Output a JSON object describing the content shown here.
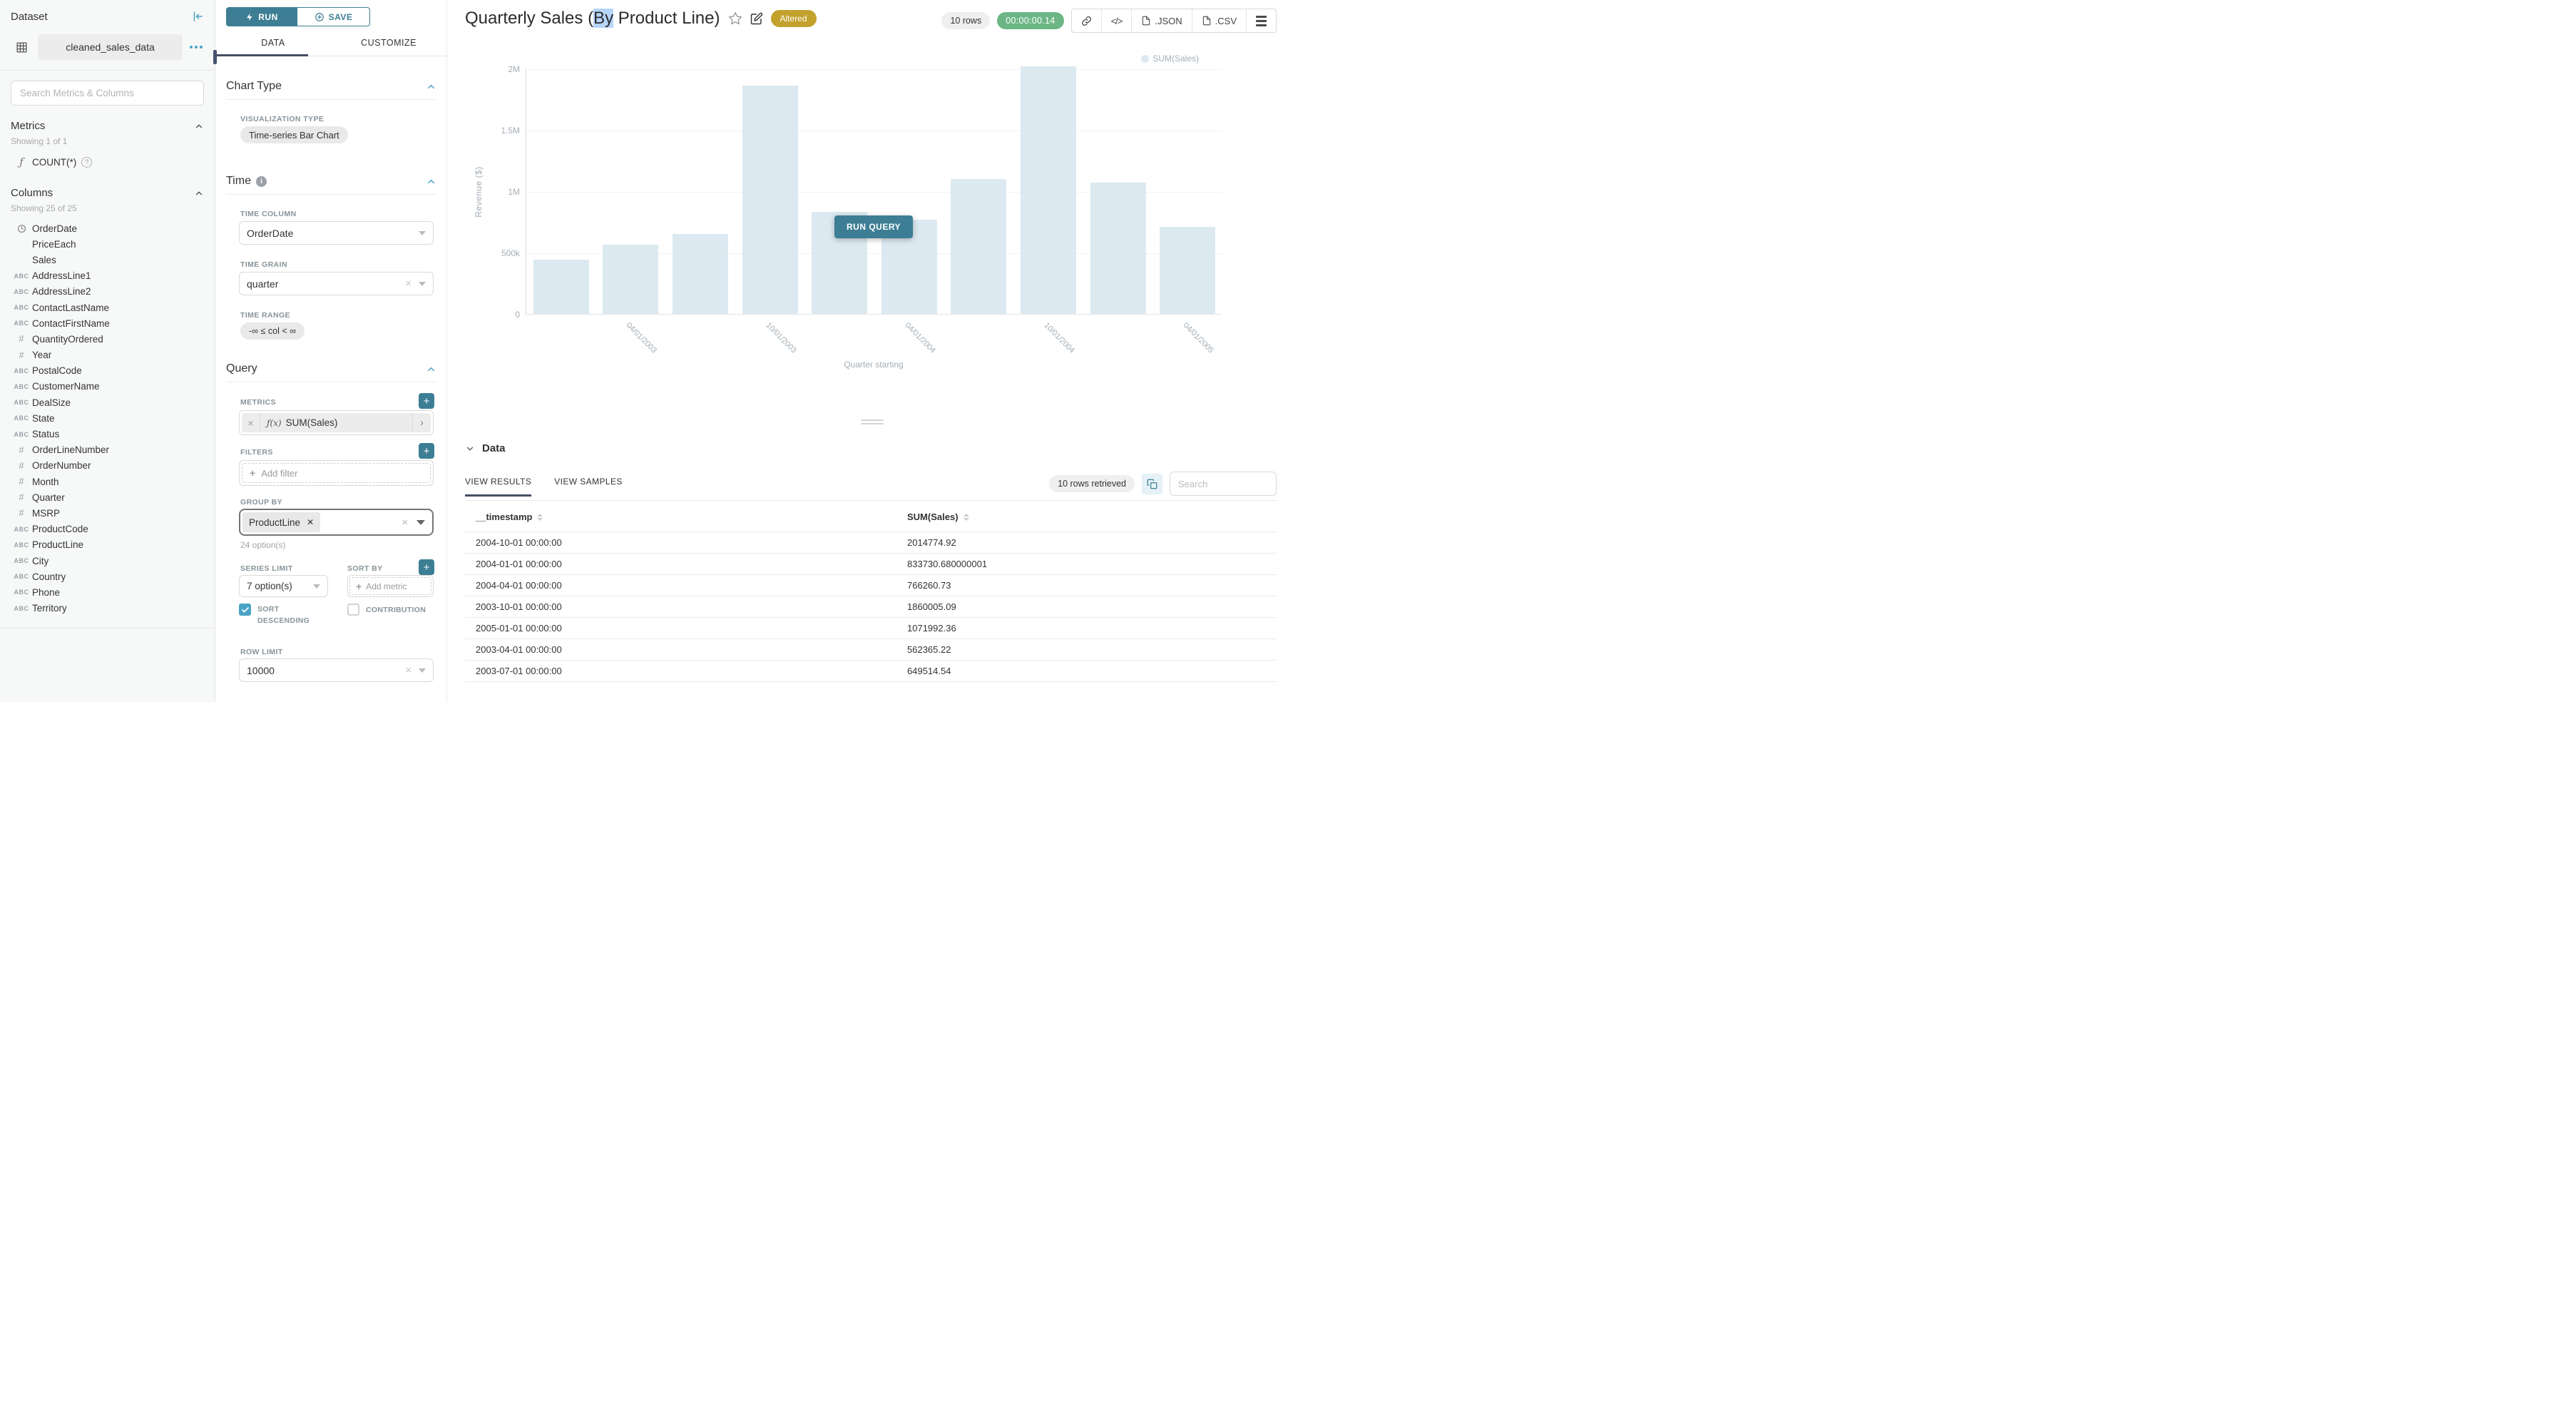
{
  "colors": {
    "accent_teal": "#3d7e94",
    "accent_teal_light": "#4aa3c4",
    "tab_underline_navy": "#474f63",
    "altered_badge_gold": "#c3a12d",
    "timer_green": "#6cb685",
    "bar_fill": "#dce9f1",
    "title_selection": "#b5d5fa"
  },
  "sidebar": {
    "panel_title": "Dataset",
    "dataset_name": "cleaned_sales_data",
    "search_placeholder": "Search Metrics & Columns",
    "metrics": {
      "header": "Metrics",
      "showing": "Showing 1 of 1",
      "items": [
        {
          "icon": "function",
          "label": "COUNT(*)"
        }
      ]
    },
    "columns": {
      "header": "Columns",
      "showing": "Showing 25 of 25",
      "items": [
        {
          "type": "time",
          "label": "OrderDate"
        },
        {
          "type": "none",
          "label": "PriceEach"
        },
        {
          "type": "none",
          "label": "Sales"
        },
        {
          "type": "text",
          "label": "AddressLine1"
        },
        {
          "type": "text",
          "label": "AddressLine2"
        },
        {
          "type": "text",
          "label": "ContactLastName"
        },
        {
          "type": "text",
          "label": "ContactFirstName"
        },
        {
          "type": "num",
          "label": "QuantityOrdered"
        },
        {
          "type": "num",
          "label": "Year"
        },
        {
          "type": "text",
          "label": "PostalCode"
        },
        {
          "type": "text",
          "label": "CustomerName"
        },
        {
          "type": "text",
          "label": "DealSize"
        },
        {
          "type": "text",
          "label": "State"
        },
        {
          "type": "text",
          "label": "Status"
        },
        {
          "type": "num",
          "label": "OrderLineNumber"
        },
        {
          "type": "num",
          "label": "OrderNumber"
        },
        {
          "type": "num",
          "label": "Month"
        },
        {
          "type": "num",
          "label": "Quarter"
        },
        {
          "type": "num",
          "label": "MSRP"
        },
        {
          "type": "text",
          "label": "ProductCode"
        },
        {
          "type": "text",
          "label": "ProductLine"
        },
        {
          "type": "text",
          "label": "City"
        },
        {
          "type": "text",
          "label": "Country"
        },
        {
          "type": "text",
          "label": "Phone"
        },
        {
          "type": "text",
          "label": "Territory"
        }
      ]
    }
  },
  "panel": {
    "run_label": "RUN",
    "save_label": "SAVE",
    "tabs": {
      "data": "DATA",
      "customize": "CUSTOMIZE"
    },
    "chart_type": {
      "header": "Chart Type",
      "viz_label": "VISUALIZATION TYPE",
      "viz_value": "Time-series Bar Chart"
    },
    "time": {
      "header": "Time",
      "column_label": "TIME COLUMN",
      "column_value": "OrderDate",
      "grain_label": "TIME GRAIN",
      "grain_value": "quarter",
      "range_label": "TIME RANGE",
      "range_value": "-∞ ≤ col < ∞"
    },
    "query": {
      "header": "Query",
      "metrics_label": "METRICS",
      "metric_fx": "ƒ(x)",
      "metric_value": "SUM(Sales)",
      "filters_label": "FILTERS",
      "add_filter_label": "Add filter",
      "group_by_label": "GROUP BY",
      "group_by_chip": "ProductLine",
      "group_by_hint": "24 option(s)",
      "series_limit_label": "SERIES LIMIT",
      "series_limit_value": "7 option(s)",
      "sort_by_label": "SORT BY",
      "add_metric_label": "Add metric",
      "sort_descending_label": "SORT DESCENDING",
      "contribution_label": "CONTRIBUTION",
      "row_limit_label": "ROW LIMIT",
      "row_limit_value": "10000"
    }
  },
  "main_header": {
    "title_prefix": "Quarterly Sales (",
    "title_selected": "By",
    "title_suffix": " Product Line)",
    "altered_badge": "Altered",
    "rows_badge": "10 rows",
    "timer": "00:00:00.14",
    "toolbar": {
      "json_label": ".JSON",
      "csv_label": ".CSV"
    }
  },
  "chart_overlay": {
    "run_query_label": "RUN QUERY"
  },
  "chart_data": {
    "type": "bar",
    "title": "Quarterly Sales (By Product Line)",
    "xlabel": "Quarter starting",
    "ylabel": "Revenue ($)",
    "legend": [
      {
        "name": "SUM(Sales)"
      }
    ],
    "legend_position": "top-right",
    "grid": true,
    "ylim": [
      0,
      2000000
    ],
    "bar_color": "#dce9f1",
    "yticks": [
      {
        "value": 0,
        "label": "0"
      },
      {
        "value": 500000,
        "label": "500k"
      },
      {
        "value": 1000000,
        "label": "1M"
      },
      {
        "value": 1500000,
        "label": "1.5M"
      },
      {
        "value": 2000000,
        "label": "2M"
      }
    ],
    "x": [
      "2003-01-01",
      "2003-04-01",
      "2003-07-01",
      "2003-10-01",
      "2004-01-01",
      "2004-04-01",
      "2004-07-01",
      "2004-10-01",
      "2005-01-01",
      "2005-04-01"
    ],
    "series": [
      {
        "name": "SUM(Sales)",
        "values": [
          440000,
          562365.22,
          649514.54,
          1860005.09,
          833730.68,
          766260.73,
          1100000,
          2014774.92,
          1071992.36,
          710000
        ]
      }
    ],
    "xtick_labels": [
      {
        "index": 1,
        "label": "04/01/2003"
      },
      {
        "index": 3,
        "label": "10/01/2003"
      },
      {
        "index": 5,
        "label": "04/01/2004"
      },
      {
        "index": 7,
        "label": "10/01/2004"
      },
      {
        "index": 9,
        "label": "04/01/2005"
      }
    ]
  },
  "data_panel": {
    "header": "Data",
    "tabs": {
      "results": "VIEW RESULTS",
      "samples": "VIEW SAMPLES"
    },
    "rows_retrieved": "10 rows retrieved",
    "search_placeholder": "Search",
    "table": {
      "columns": [
        "__timestamp",
        "SUM(Sales)"
      ],
      "rows": [
        [
          "2004-10-01 00:00:00",
          "2014774.92"
        ],
        [
          "2004-01-01 00:00:00",
          "833730.680000001"
        ],
        [
          "2004-04-01 00:00:00",
          "766260.73"
        ],
        [
          "2003-10-01 00:00:00",
          "1860005.09"
        ],
        [
          "2005-01-01 00:00:00",
          "1071992.36"
        ],
        [
          "2003-04-01 00:00:00",
          "562365.22"
        ],
        [
          "2003-07-01 00:00:00",
          "649514.54"
        ]
      ]
    }
  }
}
